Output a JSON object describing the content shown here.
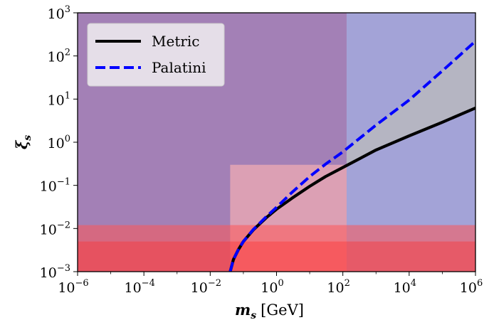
{
  "chart_data": {
    "type": "line",
    "title": "",
    "xlabel": {
      "symbol": "m_s",
      "unit": "[GeV]"
    },
    "ylabel": {
      "symbol": "ξ_s"
    },
    "xscale": "log",
    "yscale": "log",
    "xlim": [
      1e-06,
      1000000.0
    ],
    "ylim": [
      0.001,
      1000.0
    ],
    "xticks": [
      {
        "base": "10",
        "exp": "−6",
        "value": 1e-06
      },
      {
        "base": "10",
        "exp": "−4",
        "value": 0.0001
      },
      {
        "base": "10",
        "exp": "−2",
        "value": 0.01
      },
      {
        "base": "10",
        "exp": "0",
        "value": 1
      },
      {
        "base": "10",
        "exp": "2",
        "value": 100.0
      },
      {
        "base": "10",
        "exp": "4",
        "value": 10000.0
      },
      {
        "base": "10",
        "exp": "6",
        "value": 1000000.0
      }
    ],
    "yticks": [
      {
        "base": "10",
        "exp": "−3",
        "value": 0.001
      },
      {
        "base": "10",
        "exp": "−2",
        "value": 0.01
      },
      {
        "base": "10",
        "exp": "−1",
        "value": 0.1
      },
      {
        "base": "10",
        "exp": "0",
        "value": 1
      },
      {
        "base": "10",
        "exp": "1",
        "value": 10
      },
      {
        "base": "10",
        "exp": "2",
        "value": 100
      },
      {
        "base": "10",
        "exp": "3",
        "value": 1000
      }
    ],
    "legend": {
      "placement": "top-left"
    },
    "series": [
      {
        "name": "Metric",
        "color": "#000000",
        "style": "solid",
        "x": [
          0.04,
          0.05,
          0.07,
          0.1,
          0.2,
          0.5,
          1,
          3,
          10,
          30,
          100,
          1000,
          10000,
          100000,
          1000000
        ],
        "y": [
          0.001,
          0.0019,
          0.0032,
          0.005,
          0.0093,
          0.018,
          0.028,
          0.051,
          0.095,
          0.16,
          0.26,
          0.66,
          1.4,
          2.9,
          6.2
        ]
      },
      {
        "name": "Palatini",
        "color": "#0000ff",
        "style": "dashed",
        "x": [
          0.04,
          0.05,
          0.07,
          0.1,
          0.2,
          0.5,
          1,
          3,
          10,
          30,
          100,
          1000,
          10000,
          100000,
          1000000
        ],
        "y": [
          0.001,
          0.0019,
          0.0032,
          0.005,
          0.0095,
          0.019,
          0.031,
          0.07,
          0.16,
          0.31,
          0.6,
          2.5,
          9.5,
          45,
          220
        ]
      }
    ],
    "regions": [
      {
        "name": "purple-excluded",
        "color": "#7f4f9a",
        "opacity": 0.72,
        "x": [
          1e-06,
          130
        ],
        "y": [
          0.001,
          1000.0
        ]
      },
      {
        "name": "blue-excluded",
        "color": "#7f80c8",
        "opacity": 0.72,
        "x": [
          130,
          1000000.0
        ],
        "y": [
          0.001,
          1000.0
        ]
      },
      {
        "name": "red-light",
        "color": "#ffb3b3",
        "opacity": 0.62,
        "x": [
          0.04,
          130
        ],
        "y": [
          0.001,
          0.3
        ]
      },
      {
        "name": "red-band-upper",
        "color": "#ff5555",
        "opacity": 0.55,
        "x": [
          1e-06,
          1000000.0
        ],
        "y": [
          0.001,
          0.012
        ]
      },
      {
        "name": "red-band-lower",
        "color": "#ff3333",
        "opacity": 0.42,
        "x": [
          1e-06,
          1000000.0
        ],
        "y": [
          0.001,
          0.005
        ]
      },
      {
        "name": "grey-between-curves",
        "color": "#bbbbbb",
        "opacity": 0.75,
        "x": [
          130,
          1000000.0
        ],
        "y": "between-series"
      }
    ]
  }
}
